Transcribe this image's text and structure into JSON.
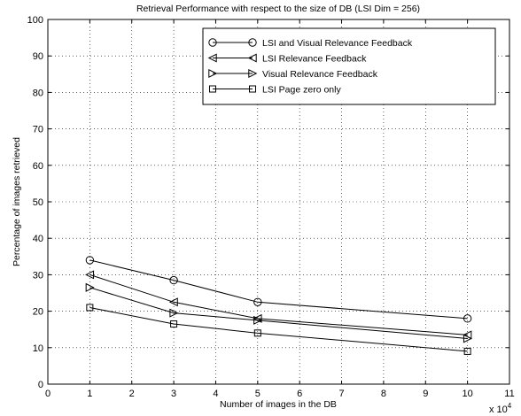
{
  "chart_data": {
    "type": "line",
    "title": "Retrieval Performance with respect to the size of DB (LSI Dim = 256)",
    "xlabel": "Number of images in the DB",
    "ylabel": "Percentage of images retrieved",
    "x_multiplier": "x 10",
    "x_multiplier_exp": "4",
    "xlim": [
      0,
      11
    ],
    "ylim": [
      0,
      100
    ],
    "xticks": [
      "0",
      "1",
      "2",
      "3",
      "4",
      "5",
      "6",
      "7",
      "8",
      "9",
      "10",
      "11"
    ],
    "yticks": [
      "0",
      "10",
      "20",
      "30",
      "40",
      "50",
      "60",
      "70",
      "80",
      "90",
      "100"
    ],
    "grid": true,
    "legend_position": "top-right",
    "x": [
      1,
      3,
      5,
      10
    ],
    "series": [
      {
        "name": "LSI and Visual Relevance Feedback",
        "marker": "circle",
        "values": [
          34,
          28.5,
          22.5,
          18
        ]
      },
      {
        "name": "LSI Relevance Feedback",
        "marker": "triangle-left",
        "values": [
          30,
          22.5,
          18,
          13.5
        ]
      },
      {
        "name": "Visual Relevance Feedback",
        "marker": "triangle-right",
        "values": [
          26.5,
          19.5,
          17.5,
          12.5
        ]
      },
      {
        "name": "LSI Page zero only",
        "marker": "square",
        "values": [
          21,
          16.5,
          14,
          9
        ]
      }
    ]
  }
}
